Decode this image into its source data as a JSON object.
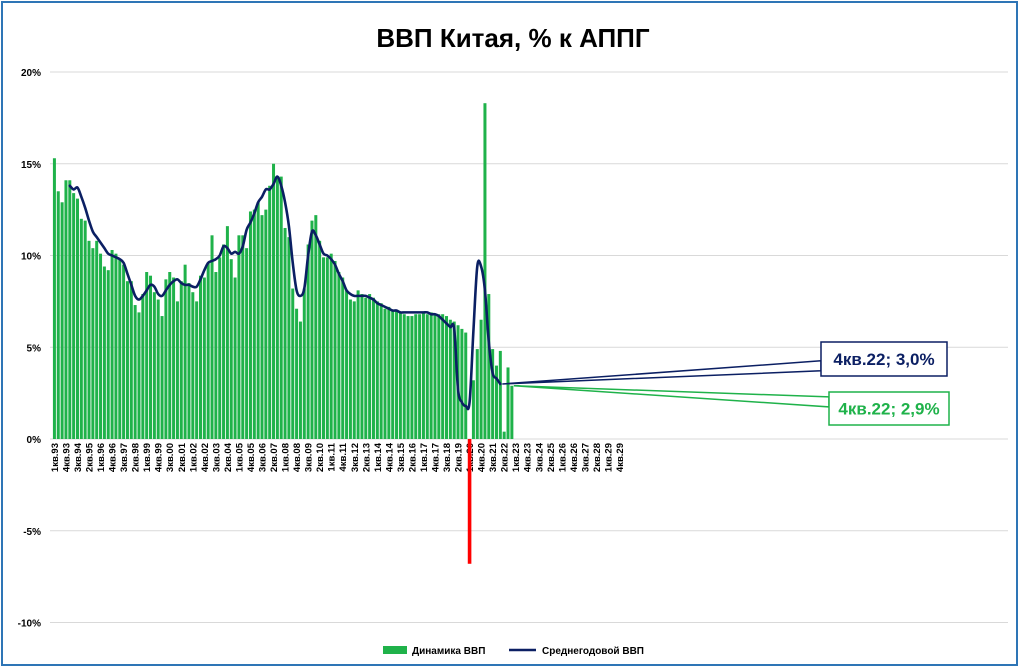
{
  "chart_data": {
    "type": "bar",
    "title": "ВВП Китая, % к АППГ",
    "xlabel": "",
    "ylabel": "",
    "ylim": [
      -10,
      20
    ],
    "y_ticks": [
      "20%",
      "15%",
      "10%",
      "5%",
      "0%",
      "-5%",
      "-10%"
    ],
    "y_tick_values": [
      20,
      15,
      10,
      5,
      0,
      -5,
      -10
    ],
    "grid": true,
    "legend_position": "bottom",
    "x_tick_labels": [
      "1кв.93",
      "4кв.93",
      "3кв.94",
      "2кв.95",
      "1кв.96",
      "4кв.96",
      "3кв.97",
      "2кв.98",
      "1кв.99",
      "4кв.99",
      "3кв.00",
      "2кв.01",
      "1кв.02",
      "4кв.02",
      "3кв.03",
      "2кв.04",
      "1кв.05",
      "4кв.05",
      "3кв.06",
      "2кв.07",
      "1кв.08",
      "4кв.08",
      "3кв.09",
      "2кв.10",
      "1кв.11",
      "4кв.11",
      "3кв.12",
      "2кв.13",
      "1кв.14",
      "4кв.14",
      "3кв.15",
      "2кв.16",
      "1кв.17",
      "4кв.17",
      "3кв.18",
      "2кв.19",
      "1кв.20",
      "4кв.20",
      "3кв.21",
      "2кв.22",
      "1кв.23",
      "4кв.23",
      "3кв.24",
      "2кв.25",
      "1кв.26",
      "4кв.26",
      "3кв.27",
      "2кв.28",
      "1кв.29",
      "4кв.29"
    ],
    "series": [
      {
        "name": "Динамика ВВП",
        "kind": "bar",
        "color": "#1FB24A",
        "start": "1кв.93",
        "values": [
          15.3,
          13.5,
          12.9,
          14.1,
          14.1,
          13.4,
          13.1,
          12.0,
          11.9,
          10.8,
          10.4,
          10.8,
          10.1,
          9.4,
          9.2,
          10.3,
          10.1,
          9.8,
          9.5,
          8.6,
          8.6,
          7.3,
          6.9,
          7.9,
          9.1,
          8.9,
          8.0,
          7.6,
          6.7,
          8.7,
          9.1,
          8.8,
          7.5,
          8.6,
          9.5,
          8.5,
          8.0,
          7.5,
          8.9,
          8.8,
          9.6,
          11.1,
          9.1,
          9.9,
          10.6,
          11.6,
          9.8,
          8.8,
          11.1,
          11.1,
          10.4,
          12.4,
          12.5,
          12.9,
          12.2,
          12.5,
          13.8,
          15.0,
          14.3,
          14.3,
          11.5,
          11.0,
          8.2,
          7.1,
          6.4,
          8.2,
          10.6,
          11.9,
          12.2,
          10.8,
          9.9,
          9.9,
          10.1,
          9.7,
          9.1,
          8.8,
          8.1,
          7.6,
          7.5,
          8.1,
          7.9,
          7.7,
          7.9,
          7.7,
          7.5,
          7.4,
          7.1,
          7.2,
          7.0,
          7.0,
          6.9,
          6.8,
          6.7,
          6.7,
          6.8,
          6.8,
          6.9,
          6.8,
          6.9,
          6.8,
          6.8,
          6.8,
          6.7,
          6.5,
          6.4,
          6.2,
          6.0,
          5.8,
          null,
          3.2,
          4.9,
          6.5,
          18.3,
          7.9,
          4.9,
          4.0,
          4.8,
          0.4,
          3.9,
          2.9
        ]
      },
      {
        "name": "Среднегодовой ВВП",
        "kind": "line",
        "color": "#0B1F63",
        "start": "1кв.94",
        "values": [
          13.8,
          13.6,
          13.7,
          13.2,
          12.6,
          11.9,
          11.3,
          11.0,
          10.7,
          10.4,
          10.1,
          10.0,
          9.9,
          9.8,
          9.6,
          9.0,
          8.4,
          7.8,
          7.6,
          7.8,
          8.1,
          8.4,
          8.3,
          7.9,
          7.8,
          8.1,
          8.4,
          8.6,
          8.7,
          8.5,
          8.4,
          8.4,
          8.3,
          8.3,
          8.7,
          9.2,
          9.6,
          9.7,
          9.8,
          10.0,
          10.5,
          10.4,
          10.1,
          10.2,
          10.1,
          10.5,
          11.4,
          11.8,
          12.3,
          12.9,
          13.2,
          13.6,
          13.6,
          13.9,
          14.3,
          13.8,
          12.9,
          11.6,
          9.6,
          8.1,
          7.8,
          8.2,
          10.0,
          11.3,
          11.1,
          10.6,
          10.1,
          10.0,
          9.8,
          9.5,
          9.0,
          8.6,
          8.1,
          7.9,
          7.8,
          7.8,
          7.8,
          7.8,
          7.7,
          7.6,
          7.4,
          7.3,
          7.2,
          7.1,
          7.0,
          7.0,
          6.9,
          6.9,
          6.9,
          6.9,
          6.9,
          6.9,
          6.9,
          6.9,
          6.8,
          6.8,
          6.7,
          6.5,
          6.3,
          6.1,
          6.0,
          2.7,
          2.0,
          1.8,
          2.0,
          5.9,
          9.4,
          9.4,
          8.1,
          5.3,
          3.6,
          3.3,
          3.0
        ]
      },
      {
        "name": "",
        "kind": "marker",
        "color": "#FF0000",
        "start": "1кв.20",
        "values": [
          -6.8
        ]
      }
    ],
    "annotations": [
      {
        "text": "4кв.22; 3,0%",
        "color": "#0B1F63",
        "series": "Среднегодовой ВВП"
      },
      {
        "text": "4кв.22; 2,9%",
        "color": "#1FB24A",
        "series": "Динамика ВВП"
      }
    ]
  }
}
